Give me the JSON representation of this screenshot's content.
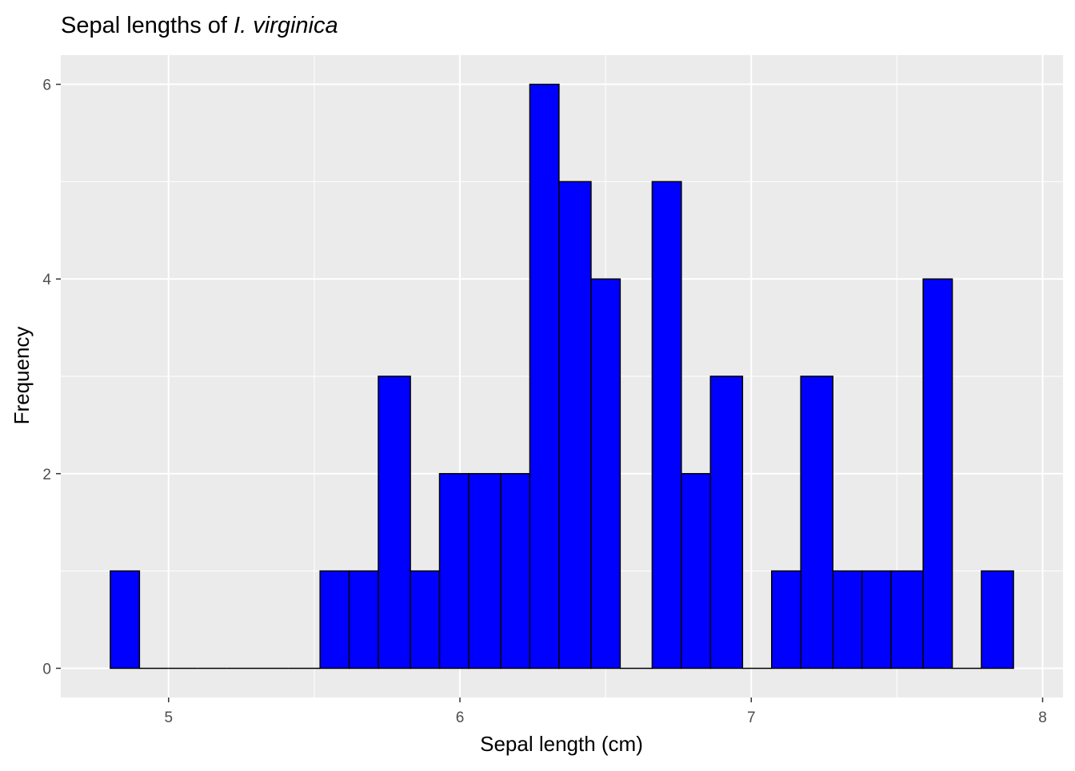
{
  "chart_data": {
    "type": "bar",
    "title": {
      "prefix": "Sepal lengths of ",
      "italic": "I. virginica"
    },
    "xlabel": "Sepal length (cm)",
    "ylabel": "Frequency",
    "xlim": [
      4.63,
      8.07
    ],
    "ylim": [
      -0.3,
      6.3
    ],
    "xticks": [
      5,
      6,
      7,
      8
    ],
    "yticks": [
      0,
      2,
      4,
      6
    ],
    "grid": true,
    "bar_fill": "#0000ff",
    "bar_outline": "#000000",
    "panel_background": "#ebebeb",
    "bins": [
      {
        "x0": 4.8,
        "x1": 4.9,
        "count": 1
      },
      {
        "x0": 4.9,
        "x1": 5.0,
        "count": 0
      },
      {
        "x0": 5.0,
        "x1": 5.1,
        "count": 0
      },
      {
        "x0": 5.1,
        "x1": 5.2,
        "count": 0
      },
      {
        "x0": 5.2,
        "x1": 5.3,
        "count": 0
      },
      {
        "x0": 5.3,
        "x1": 5.41,
        "count": 0
      },
      {
        "x0": 5.41,
        "x1": 5.52,
        "count": 0
      },
      {
        "x0": 5.52,
        "x1": 5.62,
        "count": 1
      },
      {
        "x0": 5.62,
        "x1": 5.72,
        "count": 1
      },
      {
        "x0": 5.72,
        "x1": 5.83,
        "count": 3
      },
      {
        "x0": 5.83,
        "x1": 5.93,
        "count": 1
      },
      {
        "x0": 5.93,
        "x1": 6.03,
        "count": 2
      },
      {
        "x0": 6.03,
        "x1": 6.14,
        "count": 2
      },
      {
        "x0": 6.14,
        "x1": 6.24,
        "count": 2
      },
      {
        "x0": 6.24,
        "x1": 6.34,
        "count": 6
      },
      {
        "x0": 6.34,
        "x1": 6.45,
        "count": 5
      },
      {
        "x0": 6.45,
        "x1": 6.55,
        "count": 4
      },
      {
        "x0": 6.55,
        "x1": 6.66,
        "count": 0
      },
      {
        "x0": 6.66,
        "x1": 6.76,
        "count": 5
      },
      {
        "x0": 6.76,
        "x1": 6.86,
        "count": 2
      },
      {
        "x0": 6.86,
        "x1": 6.97,
        "count": 3
      },
      {
        "x0": 6.97,
        "x1": 7.07,
        "count": 0
      },
      {
        "x0": 7.07,
        "x1": 7.17,
        "count": 1
      },
      {
        "x0": 7.17,
        "x1": 7.28,
        "count": 3
      },
      {
        "x0": 7.28,
        "x1": 7.38,
        "count": 1
      },
      {
        "x0": 7.38,
        "x1": 7.48,
        "count": 1
      },
      {
        "x0": 7.48,
        "x1": 7.59,
        "count": 1
      },
      {
        "x0": 7.59,
        "x1": 7.69,
        "count": 4
      },
      {
        "x0": 7.69,
        "x1": 7.79,
        "count": 0
      },
      {
        "x0": 7.79,
        "x1": 7.9,
        "count": 1
      }
    ]
  }
}
